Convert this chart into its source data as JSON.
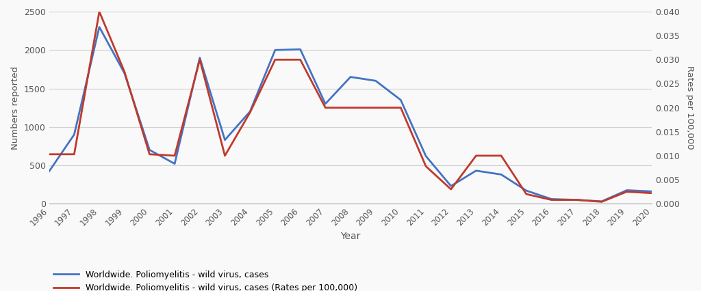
{
  "years": [
    1996,
    1997,
    1998,
    1999,
    2000,
    2001,
    2002,
    2003,
    2004,
    2005,
    2006,
    2007,
    2008,
    2009,
    2010,
    2011,
    2012,
    2013,
    2014,
    2015,
    2016,
    2017,
    2018,
    2019,
    2020
  ],
  "cases": [
    420,
    900,
    2300,
    1700,
    700,
    520,
    1900,
    830,
    1200,
    2000,
    2010,
    1300,
    1650,
    1600,
    1350,
    620,
    230,
    430,
    380,
    170,
    60,
    50,
    30,
    175,
    160
  ],
  "rates": [
    0.0103,
    0.0103,
    0.04,
    0.0275,
    0.0103,
    0.01,
    0.03,
    0.01,
    0.019,
    0.03,
    0.03,
    0.02,
    0.02,
    0.02,
    0.02,
    0.0078,
    0.003,
    0.01,
    0.01,
    0.002,
    0.0008,
    0.0008,
    0.0004,
    0.0025,
    0.0022
  ],
  "cases_color": "#4472c4",
  "rates_color": "#c0392b",
  "background_color": "#f9f9f9",
  "plot_bg_color": "#f9f9f9",
  "grid_color": "#d0d0d0",
  "ylim_cases": [
    0,
    2500
  ],
  "ylim_rates": [
    0.0,
    0.04
  ],
  "ylabel_left": "Numbers reported",
  "ylabel_right": "Rates per 100,000",
  "xlabel": "Year",
  "legend_cases": "Worldwide. Poliomyelitis - wild virus, cases",
  "legend_rates": "Worldwide. Poliomyelitis - wild virus, cases (Rates per 100,000)",
  "line_width": 2.0,
  "yticks_left": [
    0,
    500,
    1000,
    1500,
    2000,
    2500
  ],
  "yticks_right": [
    0.0,
    0.005,
    0.01,
    0.015,
    0.02,
    0.025,
    0.03,
    0.035,
    0.04
  ]
}
